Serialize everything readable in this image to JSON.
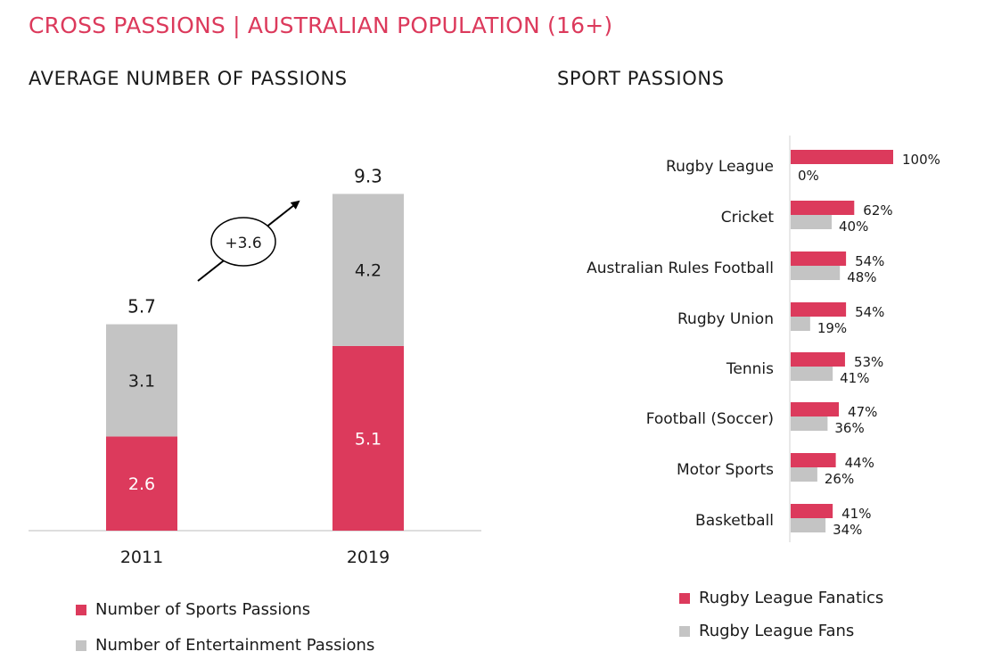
{
  "title": "CROSS PASSIONS | AUSTRALIAN POPULATION (16+)",
  "colors": {
    "accent": "#dc3a5c",
    "grey": "#c4c4c4",
    "text": "#1a1a1a"
  },
  "chart_data": [
    {
      "type": "bar",
      "stacked": true,
      "title": "AVERAGE NUMBER OF PASSIONS",
      "categories": [
        "2011",
        "2019"
      ],
      "series": [
        {
          "name": "Number of Sports Passions",
          "values": [
            2.6,
            5.1
          ],
          "labels": [
            "2.6",
            "5.1"
          ],
          "color": "#dc3a5c"
        },
        {
          "name": "Number of Entertainment Passions",
          "values": [
            3.1,
            4.2
          ],
          "labels": [
            "3.1",
            "4.2"
          ],
          "color": "#c4c4c4"
        }
      ],
      "totals": [
        5.7,
        9.3
      ],
      "total_labels": [
        "5.7",
        "9.3"
      ],
      "annotation": "+3.6",
      "legend": "bottom-left",
      "ylim": [
        0,
        10
      ]
    },
    {
      "type": "bar",
      "orientation": "horizontal",
      "title": "SPORT PASSIONS",
      "categories": [
        "Rugby League",
        "Cricket",
        "Australian Rules Football",
        "Rugby Union",
        "Tennis",
        "Football (Soccer)",
        "Motor Sports",
        "Basketball"
      ],
      "series": [
        {
          "name": "Rugby League Fanatics",
          "values": [
            100,
            62,
            54,
            54,
            53,
            47,
            44,
            41
          ],
          "color": "#dc3a5c"
        },
        {
          "name": "Rugby League Fans",
          "values": [
            0,
            40,
            48,
            19,
            41,
            36,
            26,
            34
          ],
          "color": "#c4c4c4"
        }
      ],
      "unit": "%",
      "legend": "bottom-right",
      "xlim": [
        0,
        100
      ]
    }
  ]
}
